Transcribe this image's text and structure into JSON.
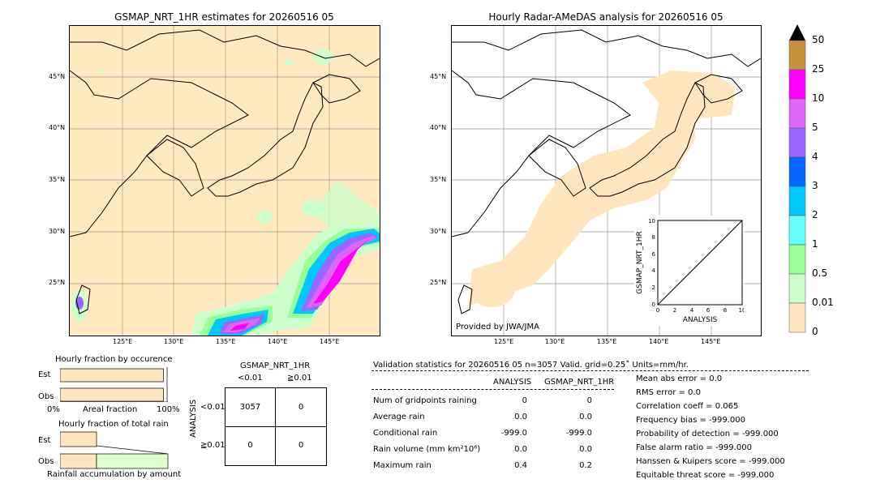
{
  "left_map": {
    "title": "GSMAP_NRT_1HR estimates for 20260516 05",
    "lat_labels": [
      "45°N",
      "40°N",
      "35°N",
      "30°N",
      "25°N"
    ],
    "lon_labels": [
      "125°E",
      "130°E",
      "135°E",
      "140°E",
      "145°E"
    ]
  },
  "right_map": {
    "title": "Hourly Radar-AMeDAS analysis for 20260516 05",
    "lat_labels": [
      "45°N",
      "40°N",
      "35°N",
      "30°N",
      "25°N"
    ],
    "lon_labels": [
      "125°E",
      "130°E",
      "135°E",
      "140°E",
      "145°E"
    ],
    "credit": "Provided by JWA/JMA",
    "inset": {
      "ylabel": "GSMAP_NRT_1HR",
      "xlabel": "ANALYSIS",
      "ticks": [
        "0",
        "2",
        "4",
        "6",
        "8",
        "10"
      ]
    }
  },
  "colorbar": {
    "labels": [
      "50",
      "25",
      "10",
      "5",
      "4",
      "3",
      "2",
      "1",
      "0.5",
      "0.01",
      "0"
    ],
    "colors": [
      "#c8913c",
      "#ff00ff",
      "#dd66f7",
      "#9966ff",
      "#0066ff",
      "#00c8ff",
      "#66ffff",
      "#99ff99",
      "#ccffcc",
      "#ffe6bf"
    ]
  },
  "occurrence": {
    "title": "Hourly fraction by occurence",
    "est_label": "Est",
    "obs_label": "Obs",
    "axis_left": "0%",
    "axis_mid": "Areal fraction",
    "axis_right": "100%",
    "est_fraction": 0.98,
    "obs_fraction": 0.98
  },
  "rainfall": {
    "title": "Hourly fraction of total rain",
    "est_label": "Est",
    "obs_label": "Obs",
    "footer": "Rainfall accumulation by amount"
  },
  "contingency": {
    "title": "GSMAP_NRT_1HR",
    "col1": "<0.01",
    "col2": "≧0.01",
    "row_axis": "ANALYSIS",
    "row1": "<0.01",
    "row2": "≧0.01",
    "cells": [
      "3057",
      "0",
      "0",
      "0"
    ]
  },
  "validation": {
    "header": "Validation statistics for 20260516 05  n=3057 Valid. grid=0.25˚ Units=mm/hr.",
    "col_analysis": "ANALYSIS",
    "col_gsmap": "GSMAP_NRT_1HR",
    "rows": [
      {
        "label": "Num of gridpoints raining",
        "a": "0",
        "g": "0"
      },
      {
        "label": "Average rain",
        "a": "0.0",
        "g": "0.0"
      },
      {
        "label": "Conditional rain",
        "a": "-999.0",
        "g": "-999.0"
      },
      {
        "label": "Rain volume (mm km²10⁶)",
        "a": "0.0",
        "g": "0.0"
      },
      {
        "label": "Maximum rain",
        "a": "0.4",
        "g": "0.2"
      }
    ],
    "scores": [
      "Mean abs error =    0.0",
      "RMS error =    0.0",
      "Correlation coeff =  0.065",
      "Frequency bias = -999.000",
      "Probability of detection = -999.000",
      "False alarm ratio = -999.000",
      "Hanssen & Kuipers score = -999.000",
      "Equitable threat score = -999.000"
    ]
  },
  "chart_data": [
    {
      "type": "heatmap",
      "title": "GSMAP_NRT_1HR estimates for 20260516 05",
      "x_range_deg": [
        120,
        150
      ],
      "y_range_deg": [
        20,
        50
      ],
      "grid": true
    },
    {
      "type": "heatmap",
      "title": "Hourly Radar-AMeDAS analysis for 20260516 05",
      "x_range_deg": [
        120,
        150
      ],
      "y_range_deg": [
        20,
        50
      ],
      "grid": true
    },
    {
      "type": "line",
      "title": "",
      "xlabel": "ANALYSIS",
      "ylabel": "GSMAP_NRT_1HR",
      "xlim": [
        0,
        10
      ],
      "ylim": [
        0,
        10
      ],
      "x": [
        0,
        10
      ],
      "y": [
        0,
        10
      ]
    },
    {
      "type": "table",
      "title": "GSMAP_NRT_1HR",
      "categories": [
        "<0.01",
        "≧0.01"
      ],
      "values": [
        [
          3057,
          0
        ],
        [
          0,
          0
        ]
      ]
    }
  ]
}
